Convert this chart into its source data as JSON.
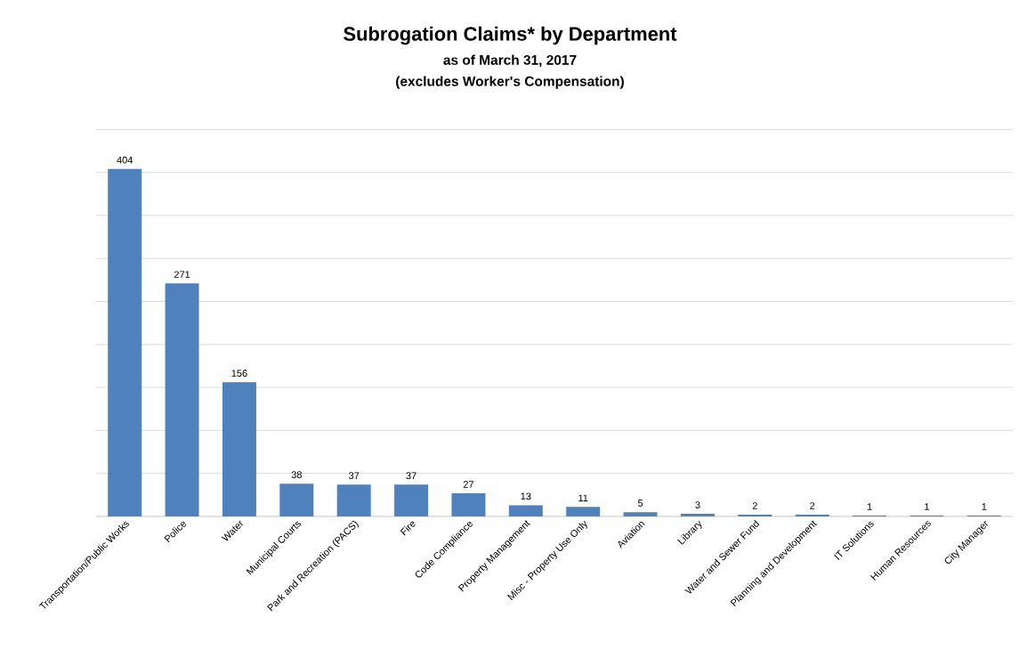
{
  "chart_data": {
    "type": "bar",
    "title": "Subrogation Claims* by Department",
    "subtitle": "as of March 31, 2017\n(excludes Worker's Compensation)",
    "categories": [
      "Transportation/Public Works",
      "Police",
      "Water",
      "Municipal Courts",
      "Park and Recreation (PACS)",
      "Fire",
      "Code Compliance",
      "Property Management",
      "Misc - Property Use Only",
      "Aviation",
      "Library",
      "Water and Sewer Fund",
      "Planning and Development",
      "IT Solutions",
      "Human Resources",
      "City Manager"
    ],
    "values": [
      404,
      271,
      156,
      38,
      37,
      37,
      27,
      13,
      11,
      5,
      3,
      2,
      2,
      1,
      1,
      1
    ],
    "color": "#4f81bd",
    "data_labels": true,
    "grid": "y",
    "tick_labels": "x"
  }
}
